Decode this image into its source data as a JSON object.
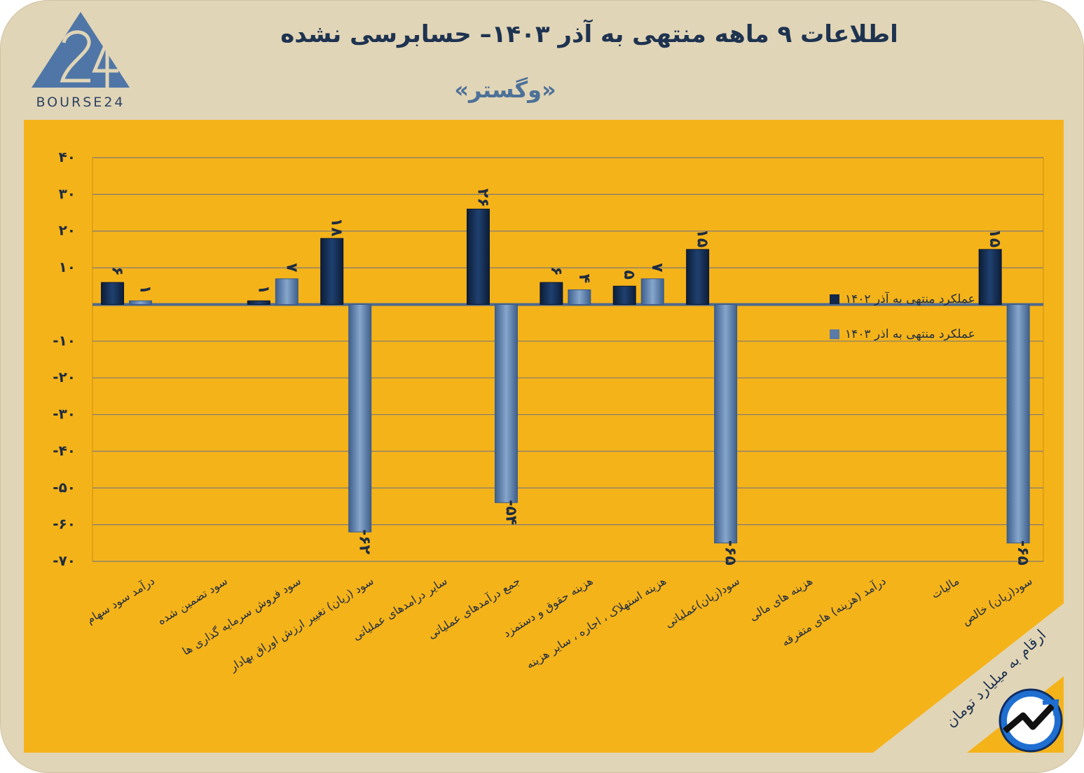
{
  "header": {
    "title": "اطلاعات ۹ ماهه منتهی به آذر ۱۴۰۳– حسابرسی نشده",
    "subtitle": "«وگستر»",
    "logo_text": "BOURSE24"
  },
  "footer": {
    "units_note": "ارقام به میلیارد تومان"
  },
  "colors": {
    "card_bg": "#e1d5b7",
    "panel_bg": "#f5b31a",
    "series_1402": "#12284a",
    "series_1403": "#5a7ba6",
    "baseline": "#4d6a8e",
    "title": "#1e3350"
  },
  "chart_data": {
    "type": "bar",
    "title": "",
    "xlabel": "",
    "ylabel": "",
    "ylim": [
      -70,
      40
    ],
    "yticks": [
      40,
      30,
      20,
      10,
      -10,
      -20,
      -30,
      -40,
      -50,
      -60,
      -70
    ],
    "ytick_labels": [
      "۴۰",
      "۳۰",
      "۲۰",
      "۱۰",
      "-۱۰",
      "-۲۰",
      "-۳۰",
      "-۴۰",
      "-۵۰",
      "-۶۰",
      "-۷۰"
    ],
    "grid": true,
    "legend_position": "top-right",
    "categories": [
      "درآمد سود سهام",
      "سود تضمین شده",
      "سود فروش سرمایه گذاری ها",
      "سود (زیان) تغییر ارزش اوراق بهادار",
      "سایر درامدهای عملیاتی",
      "جمع درآمدهای عملیاتی",
      "هزینه حقوق و دستمزد",
      "هزینه استهلاک ، اجاره ، سایر هزینه",
      "سود(زیان)عملیاتی",
      "هزینه های مالی",
      "درآمد (هزینه) های متفرقه",
      "مالیات",
      "سود(زیان) خالص"
    ],
    "series": [
      {
        "name": "عملکرد منتهی به آذر ۱۴۰۲",
        "values": [
          6,
          0,
          1,
          18,
          0,
          26,
          6,
          5,
          15,
          0,
          0,
          0,
          15
        ],
        "labels": [
          "۶",
          "",
          "۱",
          "۱۸",
          "",
          "۲۶",
          "۶",
          "۵",
          "۱۵",
          "",
          "",
          "",
          "۱۵"
        ]
      },
      {
        "name": "عملکرد منتهی به اذر ۱۴۰۳",
        "values": [
          1,
          0,
          7,
          -62,
          0,
          -54,
          4,
          7,
          -65,
          0,
          0,
          0,
          -65
        ],
        "labels": [
          "۱",
          "",
          "۷",
          "-۶۲",
          "",
          "-۵۴",
          "۴",
          "۷",
          "-۶۵",
          "",
          "",
          "",
          "-۶۵"
        ]
      }
    ]
  }
}
